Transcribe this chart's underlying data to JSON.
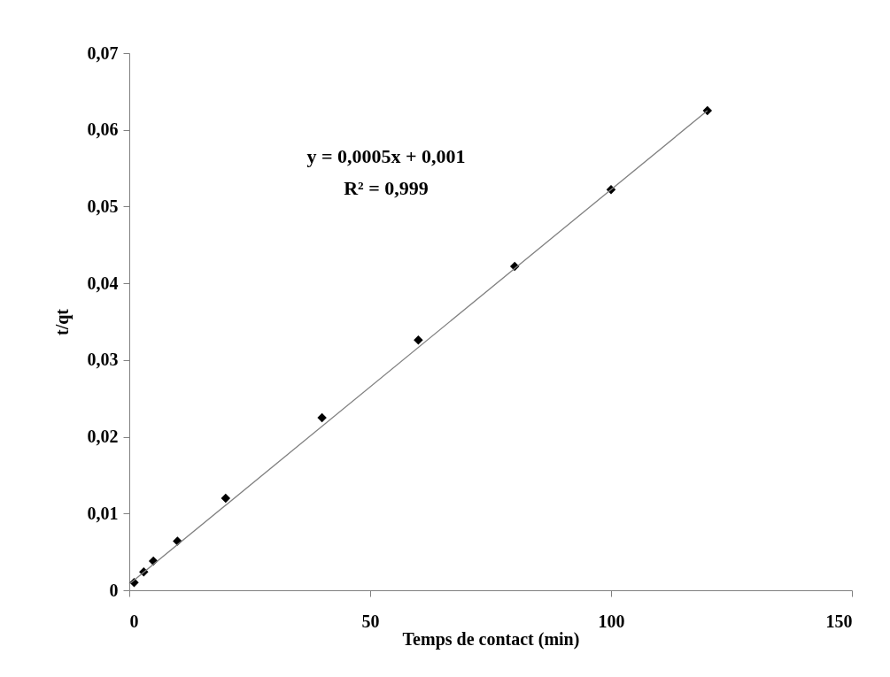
{
  "chart_data": {
    "type": "scatter",
    "xlabel": "Temps de contact (min)",
    "ylabel": "t/qt",
    "xlim": [
      0,
      150
    ],
    "xticks": [
      0,
      50,
      100,
      150
    ],
    "ylim": [
      0,
      0.07
    ],
    "yticks": [
      {
        "value": 0,
        "label": "0"
      },
      {
        "value": 0.01,
        "label": "0,01"
      },
      {
        "value": 0.02,
        "label": "0,02"
      },
      {
        "value": 0.03,
        "label": "0,03"
      },
      {
        "value": 0.04,
        "label": "0,04"
      },
      {
        "value": 0.05,
        "label": "0,05"
      },
      {
        "value": 0.06,
        "label": "0,06"
      },
      {
        "value": 0.07,
        "label": "0,07"
      }
    ],
    "grid": false,
    "series": [
      {
        "color": "#000000",
        "marker": "diamond",
        "x": [
          1,
          3,
          5,
          10,
          20,
          40,
          60,
          80,
          100,
          120
        ],
        "values": [
          0.001,
          0.0024,
          0.0038,
          0.0064,
          0.012,
          0.0225,
          0.0326,
          0.0422,
          0.0522,
          0.0625
        ]
      },
      {
        "type": "line",
        "color": "#808080",
        "line_style": "solid",
        "marker": "none",
        "x": [
          0,
          120
        ],
        "values": [
          0.0008,
          0.0625
        ]
      }
    ],
    "annotations": [
      "y = 0,0005x + 0,001",
      "R² = 0,999"
    ]
  }
}
